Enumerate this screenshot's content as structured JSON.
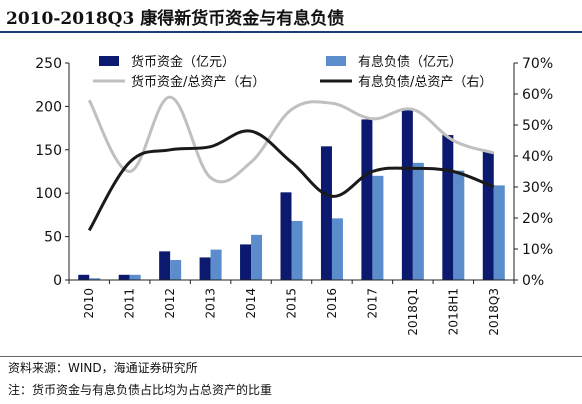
{
  "title": "2010-2018Q3 康得新货币资金与有息负债",
  "source": "资料来源：WIND，海通证券研究所",
  "note": "注：货币资金与有息负债占比均为占总资产的比重",
  "colors": {
    "cash": "#0b1a6e",
    "debt": "#5b8ccc",
    "cash_ratio": "#c0c0c0",
    "debt_ratio": "#1a1a1a",
    "rule": "#1f3c77"
  },
  "chart_data": {
    "type": "bar",
    "categories": [
      "2010",
      "2011",
      "2012",
      "2013",
      "2014",
      "2015",
      "2016",
      "2017",
      "2018Q1",
      "2018H1",
      "2018Q3"
    ],
    "series": [
      {
        "name": "货币资金（亿元）",
        "type": "bar",
        "axis": "left",
        "values": [
          6,
          6,
          33,
          26,
          41,
          101,
          154,
          185,
          198,
          167,
          148
        ]
      },
      {
        "name": "有息负债（亿元）",
        "type": "bar",
        "axis": "left",
        "values": [
          2,
          6,
          23,
          35,
          52,
          68,
          71,
          120,
          135,
          126,
          109
        ]
      },
      {
        "name": "货币资金/总资产（右）",
        "type": "line",
        "axis": "right",
        "values": [
          58,
          35,
          59,
          33,
          38,
          55,
          57,
          52,
          55,
          45,
          41
        ]
      },
      {
        "name": "有息负债/总资产（右）",
        "type": "line",
        "axis": "right",
        "values": [
          16,
          38,
          42,
          43,
          48,
          38,
          27,
          35,
          36,
          35,
          30
        ]
      }
    ],
    "y_left": {
      "min": 0,
      "max": 250,
      "ticks": [
        0,
        50,
        100,
        150,
        200,
        250
      ]
    },
    "y_right": {
      "min": 0,
      "max": 70,
      "ticks": [
        "0%",
        "10%",
        "20%",
        "30%",
        "40%",
        "50%",
        "60%",
        "70%"
      ]
    },
    "legend_position": "top",
    "grid": false
  }
}
